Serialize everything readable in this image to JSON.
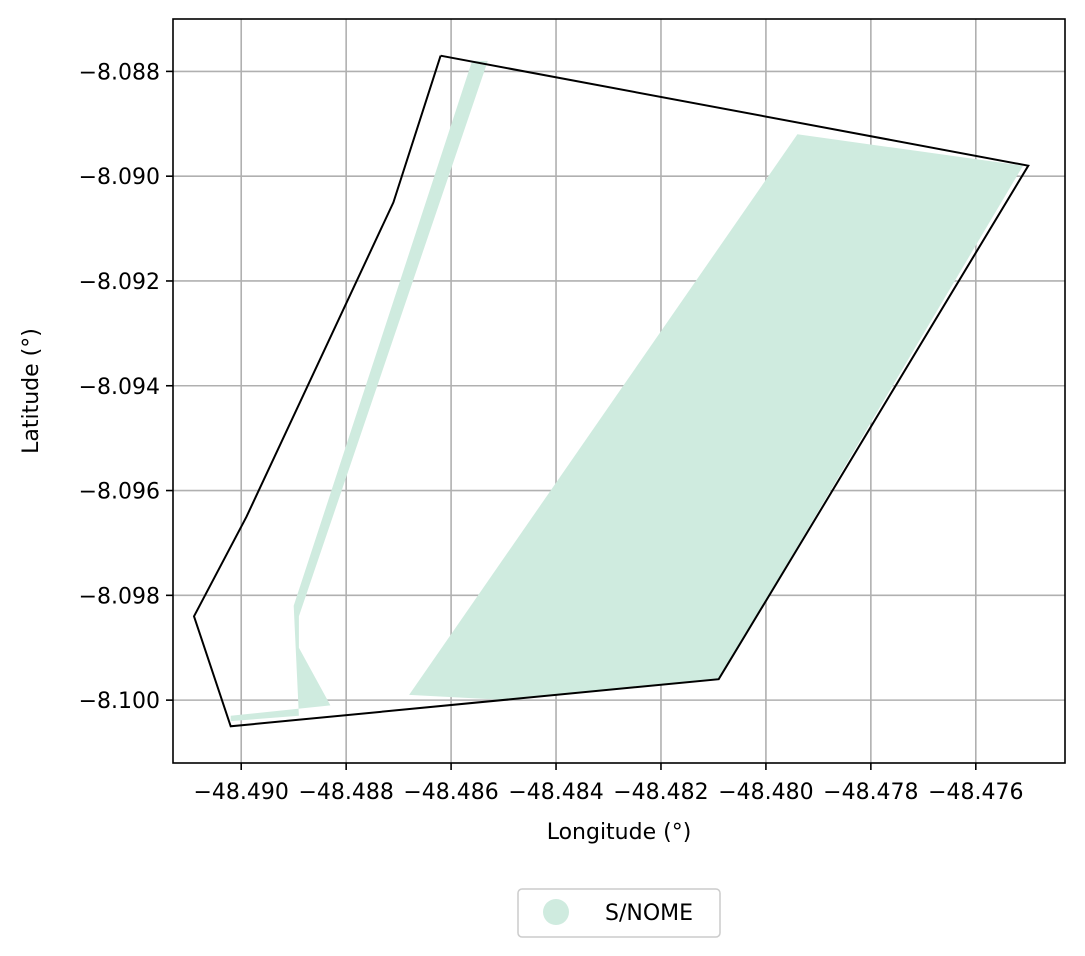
{
  "chart_data": {
    "type": "map",
    "xlabel": "Longitude (°)",
    "ylabel": "Latitude (°)",
    "xlim": [
      -48.4913,
      -48.4743
    ],
    "ylim": [
      -8.1012,
      -8.087
    ],
    "xticks": [
      -48.49,
      -48.488,
      -48.486,
      -48.484,
      -48.482,
      -48.48,
      -48.478,
      -48.476
    ],
    "yticks": [
      -8.088,
      -8.09,
      -8.092,
      -8.094,
      -8.096,
      -8.098,
      -8.1
    ],
    "xtick_labels": [
      "−48.490",
      "−48.488",
      "−48.486",
      "−48.484",
      "−48.482",
      "−48.480",
      "−48.478",
      "−48.476"
    ],
    "ytick_labels": [
      "−8.088",
      "−8.090",
      "−8.092",
      "−8.094",
      "−8.096",
      "−8.098",
      "−8.100"
    ],
    "grid": true,
    "boundary": {
      "color": "#000000",
      "coords": [
        [
          -48.4862,
          -8.0877
        ],
        [
          -48.475,
          -8.0898
        ],
        [
          -48.4809,
          -8.0996
        ],
        [
          -48.4902,
          -8.1005
        ],
        [
          -48.4909,
          -8.0984
        ],
        [
          -48.4899,
          -8.0965
        ],
        [
          -48.4871,
          -8.0905
        ],
        [
          -48.4862,
          -8.0877
        ]
      ]
    },
    "series": [
      {
        "name": "S/NOME",
        "color": "#cfebdf",
        "polygons": [
          [
            [
              -48.4856,
              -8.0878
            ],
            [
              -48.489,
              -8.0982
            ],
            [
              -48.4889,
              -8.1003
            ],
            [
              -48.4902,
              -8.1004
            ],
            [
              -48.4902,
              -8.1003
            ],
            [
              -48.4883,
              -8.1001
            ],
            [
              -48.4889,
              -8.099
            ],
            [
              -48.4889,
              -8.0984
            ],
            [
              -48.4853,
              -8.0878
            ]
          ],
          [
            [
              -48.4794,
              -8.0892
            ],
            [
              -48.4751,
              -8.0898
            ],
            [
              -48.4809,
              -8.0996
            ],
            [
              -48.4849,
              -8.1
            ],
            [
              -48.4868,
              -8.0999
            ]
          ]
        ]
      }
    ],
    "legend": {
      "position": "bottom-center",
      "entries": [
        "S/NOME"
      ]
    }
  }
}
